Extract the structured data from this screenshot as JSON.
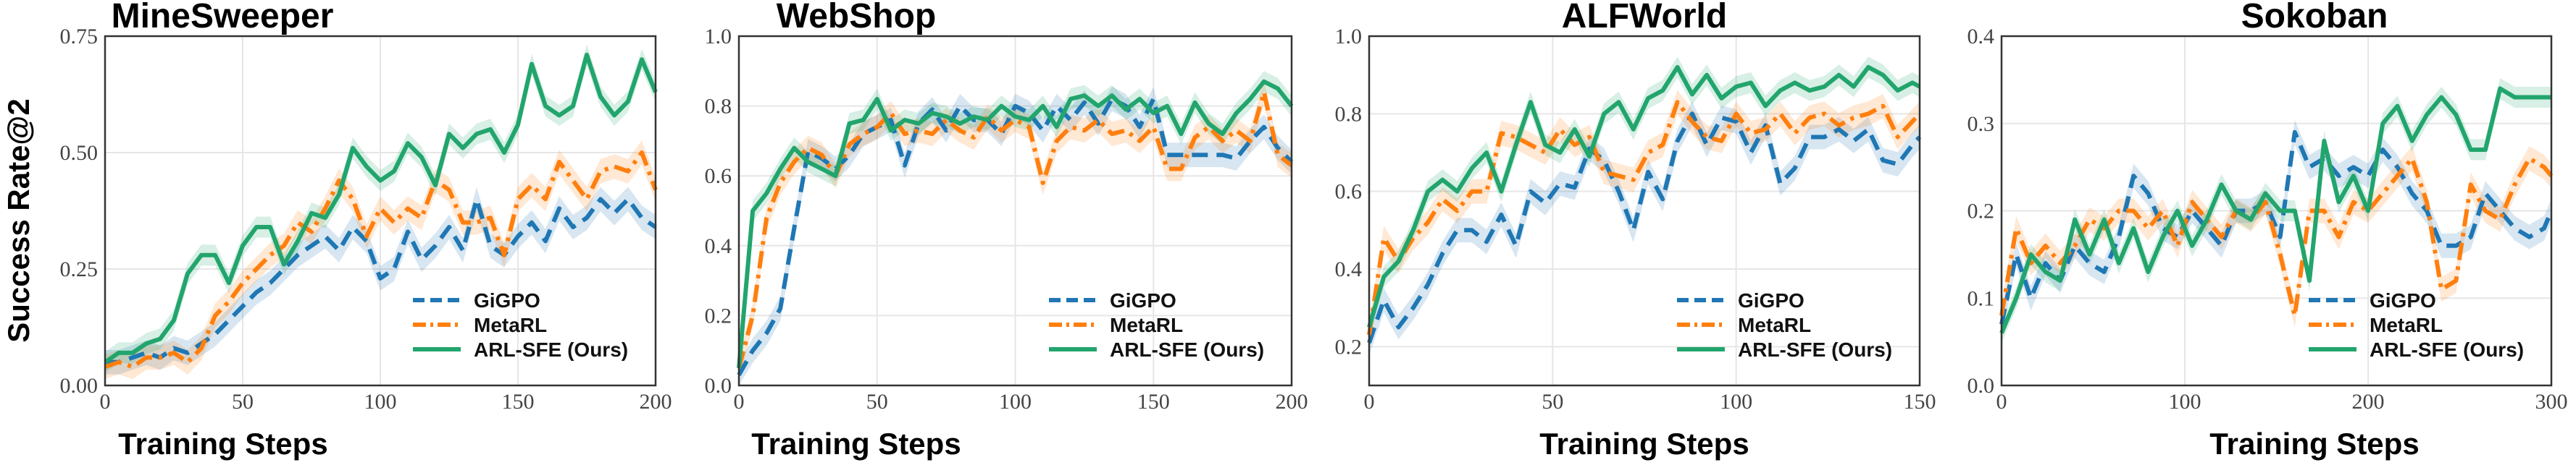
{
  "colors": {
    "gigpo": "#1f77b4",
    "metarl": "#ff7f0e",
    "arlsfe": "#22a56d",
    "grid": "#e6e6e6",
    "frame": "#333333"
  },
  "legend": [
    "GiGPO",
    "MetaRL",
    "ARL-SFE (Ours)"
  ],
  "ylabel": "Success Rate@2",
  "chart_data": [
    {
      "type": "line",
      "title": "MineSweeper",
      "xlabel": "Training Steps",
      "ylabel": "Success Rate@2",
      "xlim": [
        0,
        200
      ],
      "ylim": [
        0,
        0.75
      ],
      "xticks": [
        0,
        50,
        100,
        150,
        200
      ],
      "yticks": [
        0.0,
        0.25,
        0.5,
        0.75
      ],
      "xtick_labels": [
        "0",
        "50",
        "100",
        "150",
        "200"
      ],
      "ytick_labels": [
        "0.00",
        "0.25",
        "0.50",
        "0.75"
      ],
      "grid": true,
      "legend_position": "bottom-right",
      "x": [
        0,
        5,
        10,
        15,
        20,
        25,
        30,
        35,
        40,
        45,
        50,
        55,
        60,
        65,
        70,
        75,
        80,
        85,
        90,
        95,
        100,
        105,
        110,
        115,
        120,
        125,
        130,
        135,
        140,
        145,
        150,
        155,
        160,
        165,
        170,
        175,
        180,
        185,
        190,
        195,
        200
      ],
      "series": [
        {
          "name": "GiGPO",
          "style": "dashed",
          "values": [
            0.05,
            0.05,
            0.06,
            0.07,
            0.06,
            0.08,
            0.07,
            0.09,
            0.11,
            0.14,
            0.17,
            0.2,
            0.22,
            0.25,
            0.28,
            0.3,
            0.32,
            0.29,
            0.34,
            0.31,
            0.23,
            0.25,
            0.33,
            0.27,
            0.3,
            0.34,
            0.29,
            0.4,
            0.3,
            0.28,
            0.32,
            0.35,
            0.31,
            0.38,
            0.34,
            0.36,
            0.4,
            0.37,
            0.4,
            0.36,
            0.34
          ]
        },
        {
          "name": "MetaRL",
          "style": "dashdot",
          "values": [
            0.04,
            0.05,
            0.04,
            0.06,
            0.06,
            0.07,
            0.05,
            0.08,
            0.15,
            0.18,
            0.22,
            0.25,
            0.28,
            0.3,
            0.35,
            0.33,
            0.38,
            0.44,
            0.4,
            0.32,
            0.38,
            0.35,
            0.38,
            0.36,
            0.44,
            0.42,
            0.35,
            0.35,
            0.36,
            0.28,
            0.4,
            0.43,
            0.4,
            0.48,
            0.44,
            0.4,
            0.46,
            0.47,
            0.46,
            0.5,
            0.42
          ]
        },
        {
          "name": "ARL-SFE (Ours)",
          "style": "solid",
          "values": [
            0.05,
            0.07,
            0.07,
            0.09,
            0.1,
            0.14,
            0.24,
            0.28,
            0.28,
            0.22,
            0.3,
            0.34,
            0.34,
            0.26,
            0.31,
            0.37,
            0.36,
            0.41,
            0.51,
            0.47,
            0.44,
            0.46,
            0.52,
            0.49,
            0.43,
            0.54,
            0.51,
            0.54,
            0.55,
            0.5,
            0.56,
            0.69,
            0.6,
            0.58,
            0.6,
            0.71,
            0.62,
            0.58,
            0.61,
            0.7,
            0.63
          ]
        }
      ]
    },
    {
      "type": "line",
      "title": "WebShop",
      "xlabel": "Training Steps",
      "ylabel": "",
      "xlim": [
        0,
        200
      ],
      "ylim": [
        0,
        1.0
      ],
      "xticks": [
        0,
        50,
        100,
        150,
        200
      ],
      "yticks": [
        0.0,
        0.2,
        0.4,
        0.6,
        0.8,
        1.0
      ],
      "xtick_labels": [
        "0",
        "50",
        "100",
        "150",
        "200"
      ],
      "ytick_labels": [
        "0.0",
        "0.2",
        "0.4",
        "0.6",
        "0.8",
        "1.0"
      ],
      "grid": true,
      "legend_position": "bottom-right",
      "x": [
        0,
        5,
        10,
        15,
        20,
        25,
        30,
        35,
        40,
        45,
        50,
        55,
        60,
        65,
        70,
        75,
        80,
        85,
        90,
        95,
        100,
        105,
        110,
        115,
        120,
        125,
        130,
        135,
        140,
        145,
        150,
        155,
        160,
        165,
        170,
        175,
        180,
        185,
        190,
        195,
        200
      ],
      "series": [
        {
          "name": "GiGPO",
          "style": "dashed",
          "values": [
            0.03,
            0.1,
            0.15,
            0.22,
            0.45,
            0.67,
            0.65,
            0.62,
            0.66,
            0.72,
            0.74,
            0.76,
            0.63,
            0.75,
            0.79,
            0.73,
            0.8,
            0.76,
            0.76,
            0.72,
            0.8,
            0.78,
            0.73,
            0.8,
            0.76,
            0.81,
            0.75,
            0.82,
            0.8,
            0.74,
            0.82,
            0.66,
            0.66,
            0.66,
            0.66,
            0.66,
            0.65,
            0.7,
            0.74,
            0.68,
            0.64
          ]
        },
        {
          "name": "MetaRL",
          "style": "dashdot",
          "values": [
            0.05,
            0.2,
            0.48,
            0.58,
            0.64,
            0.68,
            0.66,
            0.6,
            0.69,
            0.72,
            0.74,
            0.78,
            0.72,
            0.73,
            0.72,
            0.76,
            0.73,
            0.71,
            0.77,
            0.73,
            0.76,
            0.74,
            0.58,
            0.7,
            0.74,
            0.73,
            0.76,
            0.72,
            0.73,
            0.7,
            0.74,
            0.62,
            0.62,
            0.71,
            0.74,
            0.7,
            0.73,
            0.7,
            0.84,
            0.66,
            0.63
          ]
        },
        {
          "name": "ARL-SFE (Ours)",
          "style": "solid",
          "values": [
            0.05,
            0.5,
            0.55,
            0.62,
            0.68,
            0.64,
            0.62,
            0.6,
            0.75,
            0.76,
            0.82,
            0.73,
            0.76,
            0.75,
            0.78,
            0.77,
            0.75,
            0.77,
            0.76,
            0.8,
            0.77,
            0.76,
            0.8,
            0.74,
            0.82,
            0.83,
            0.8,
            0.83,
            0.79,
            0.82,
            0.78,
            0.8,
            0.72,
            0.81,
            0.75,
            0.72,
            0.78,
            0.82,
            0.87,
            0.85,
            0.8
          ]
        }
      ]
    },
    {
      "type": "line",
      "title": "ALFWorld",
      "xlabel": "Training Steps",
      "ylabel": "",
      "xlim": [
        0,
        150
      ],
      "ylim": [
        0.1,
        1.0
      ],
      "xticks": [
        0,
        50,
        100,
        150
      ],
      "yticks": [
        0.2,
        0.4,
        0.6,
        0.8,
        1.0
      ],
      "xtick_labels": [
        "0",
        "50",
        "100",
        "150"
      ],
      "ytick_labels": [
        "0.2",
        "0.4",
        "0.6",
        "0.8",
        "1.0"
      ],
      "grid": true,
      "legend_position": "bottom-right",
      "x": [
        0,
        4,
        8,
        12,
        16,
        20,
        24,
        28,
        32,
        36,
        40,
        44,
        48,
        52,
        56,
        60,
        64,
        68,
        72,
        76,
        80,
        84,
        88,
        92,
        96,
        100,
        104,
        108,
        112,
        116,
        120,
        124,
        128,
        132,
        136,
        140,
        144,
        148,
        150
      ],
      "series": [
        {
          "name": "GiGPO",
          "style": "dashed",
          "values": [
            0.21,
            0.32,
            0.25,
            0.3,
            0.36,
            0.44,
            0.5,
            0.5,
            0.47,
            0.54,
            0.46,
            0.6,
            0.57,
            0.62,
            0.61,
            0.71,
            0.68,
            0.6,
            0.5,
            0.65,
            0.58,
            0.73,
            0.8,
            0.72,
            0.79,
            0.78,
            0.7,
            0.77,
            0.62,
            0.66,
            0.74,
            0.74,
            0.76,
            0.73,
            0.76,
            0.68,
            0.67,
            0.72,
            0.74
          ]
        },
        {
          "name": "MetaRL",
          "style": "dashdot",
          "values": [
            0.23,
            0.48,
            0.42,
            0.48,
            0.52,
            0.58,
            0.55,
            0.6,
            0.6,
            0.75,
            0.74,
            0.72,
            0.7,
            0.76,
            0.72,
            0.74,
            0.65,
            0.64,
            0.63,
            0.7,
            0.72,
            0.83,
            0.78,
            0.74,
            0.73,
            0.8,
            0.75,
            0.76,
            0.8,
            0.75,
            0.79,
            0.8,
            0.77,
            0.79,
            0.8,
            0.82,
            0.74,
            0.78,
            0.8
          ]
        },
        {
          "name": "ARL-SFE (Ours)",
          "style": "solid",
          "values": [
            0.25,
            0.38,
            0.42,
            0.5,
            0.6,
            0.63,
            0.6,
            0.66,
            0.7,
            0.6,
            0.72,
            0.83,
            0.72,
            0.7,
            0.76,
            0.69,
            0.8,
            0.83,
            0.76,
            0.84,
            0.86,
            0.92,
            0.85,
            0.9,
            0.84,
            0.87,
            0.88,
            0.82,
            0.86,
            0.88,
            0.86,
            0.87,
            0.9,
            0.87,
            0.92,
            0.9,
            0.86,
            0.88,
            0.87
          ]
        }
      ]
    },
    {
      "type": "line",
      "title": "Sokoban",
      "xlabel": "Training Steps",
      "ylabel": "",
      "xlim": [
        0,
        300
      ],
      "ylim": [
        0,
        0.4
      ],
      "xticks": [
        0,
        100,
        200,
        300
      ],
      "yticks": [
        0.0,
        0.1,
        0.2,
        0.3,
        0.4
      ],
      "xtick_labels": [
        "0",
        "100",
        "200",
        "300"
      ],
      "ytick_labels": [
        "0.0",
        "0.1",
        "0.2",
        "0.3",
        "0.4"
      ],
      "grid": true,
      "legend_position": "bottom-right",
      "x": [
        0,
        8,
        16,
        24,
        32,
        40,
        48,
        56,
        64,
        72,
        80,
        88,
        96,
        104,
        112,
        120,
        128,
        136,
        144,
        152,
        160,
        168,
        176,
        184,
        192,
        200,
        208,
        216,
        224,
        232,
        240,
        248,
        256,
        264,
        272,
        280,
        288,
        296,
        300
      ],
      "series": [
        {
          "name": "GiGPO",
          "style": "dashed",
          "values": [
            0.07,
            0.15,
            0.1,
            0.14,
            0.12,
            0.16,
            0.14,
            0.13,
            0.17,
            0.24,
            0.22,
            0.18,
            0.17,
            0.2,
            0.18,
            0.16,
            0.2,
            0.2,
            0.21,
            0.17,
            0.29,
            0.25,
            0.26,
            0.24,
            0.25,
            0.24,
            0.27,
            0.25,
            0.22,
            0.2,
            0.16,
            0.16,
            0.17,
            0.22,
            0.2,
            0.18,
            0.17,
            0.18,
            0.2
          ]
        },
        {
          "name": "MetaRL",
          "style": "dashdot",
          "values": [
            0.08,
            0.18,
            0.14,
            0.16,
            0.14,
            0.16,
            0.19,
            0.18,
            0.2,
            0.2,
            0.18,
            0.2,
            0.16,
            0.21,
            0.19,
            0.17,
            0.2,
            0.19,
            0.21,
            0.15,
            0.08,
            0.2,
            0.2,
            0.17,
            0.21,
            0.2,
            0.22,
            0.24,
            0.26,
            0.21,
            0.11,
            0.12,
            0.23,
            0.2,
            0.19,
            0.23,
            0.26,
            0.25,
            0.24
          ]
        },
        {
          "name": "ARL-SFE (Ours)",
          "style": "solid",
          "values": [
            0.06,
            0.1,
            0.15,
            0.13,
            0.12,
            0.19,
            0.15,
            0.19,
            0.14,
            0.18,
            0.13,
            0.17,
            0.2,
            0.16,
            0.19,
            0.23,
            0.2,
            0.19,
            0.22,
            0.2,
            0.2,
            0.12,
            0.28,
            0.21,
            0.24,
            0.2,
            0.3,
            0.32,
            0.28,
            0.31,
            0.33,
            0.31,
            0.27,
            0.27,
            0.34,
            0.33,
            0.33,
            0.33,
            0.33
          ]
        }
      ]
    }
  ]
}
